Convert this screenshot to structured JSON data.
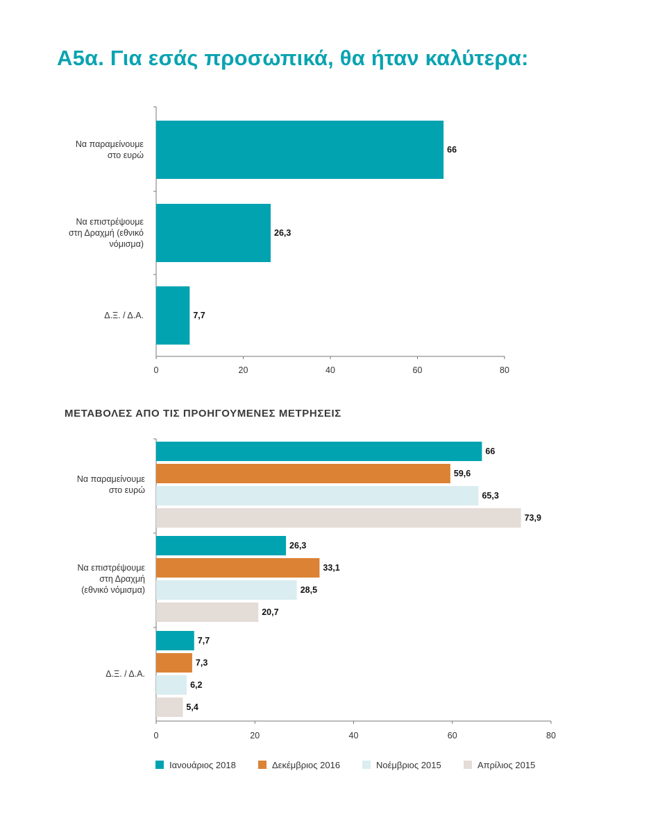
{
  "page_title": "Α5α. Για εσάς προσωπικά, θα ήταν καλύτερα:",
  "section_title": "ΜΕΤΑΒΟΛΕΣ ΑΠΟ ΤΙΣ ΠΡΟΗΓΟΥΜΕΝΕΣ ΜΕΤΡΗΣΕΙΣ",
  "chart_data": [
    {
      "type": "bar",
      "orientation": "horizontal",
      "categories": [
        [
          "Να παραμείνουμε",
          "στο ευρώ"
        ],
        [
          "Να επιστρέψουμε",
          "στη Δραχμή (εθνικό",
          "νόμισμα)"
        ],
        [
          "Δ.Ξ. / Δ.Α."
        ]
      ],
      "values": [
        66,
        26.3,
        7.7
      ],
      "value_labels": [
        "66",
        "26,3",
        "7,7"
      ],
      "xlim": [
        0,
        80
      ],
      "xticks": [
        "0",
        "20",
        "40",
        "60",
        "80"
      ],
      "color": "#01a3b1",
      "grid": false
    },
    {
      "type": "bar",
      "orientation": "horizontal",
      "categories": [
        [
          "Να παραμείνουμε",
          "στο ευρώ"
        ],
        [
          "Να επιστρέψουμε",
          "στη Δραχμή",
          "(εθνικό νόμισμα)"
        ],
        [
          "Δ.Ξ. / Δ.Α."
        ]
      ],
      "series": [
        {
          "name": "Ιανουάριος 2018",
          "color": "#01a3b1",
          "values": [
            66,
            26.3,
            7.7
          ],
          "labels": [
            "66",
            "26,3",
            "7,7"
          ]
        },
        {
          "name": "Δεκέμβριος 2016",
          "color": "#db8235",
          "values": [
            59.6,
            33.1,
            7.3
          ],
          "labels": [
            "59,6",
            "33,1",
            "7,3"
          ]
        },
        {
          "name": "Νοέμβριος 2015",
          "color": "#daedf1",
          "values": [
            65.3,
            28.5,
            6.2
          ],
          "labels": [
            "65,3",
            "28,5",
            "6,2"
          ]
        },
        {
          "name": "Απρίλιος 2015",
          "color": "#e4dcd7",
          "values": [
            73.9,
            20.7,
            5.4
          ],
          "labels": [
            "73,9",
            "20,7",
            "5,4"
          ]
        }
      ],
      "xlim": [
        0,
        80
      ],
      "xticks": [
        "0",
        "20",
        "40",
        "60",
        "80"
      ],
      "legend": "bottom",
      "grid": false
    }
  ]
}
